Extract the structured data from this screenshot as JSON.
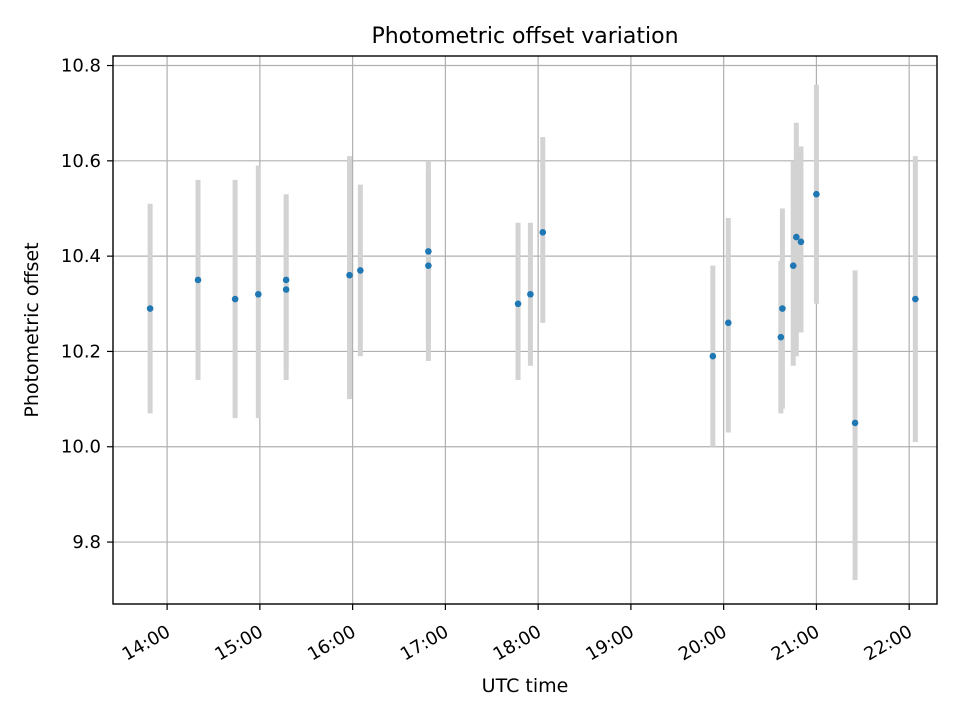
{
  "chart_data": {
    "type": "scatter",
    "title": "Photometric offset variation",
    "xlabel": "UTC time",
    "ylabel": "Photometric offset",
    "x_axis_type": "time",
    "xlim": [
      "13:25",
      "22:18"
    ],
    "ylim": [
      9.67,
      10.82
    ],
    "x_ticks": [
      "14:00",
      "15:00",
      "16:00",
      "17:00",
      "18:00",
      "19:00",
      "20:00",
      "21:00",
      "22:00"
    ],
    "y_ticks": [
      9.8,
      10.0,
      10.2,
      10.4,
      10.6,
      10.8
    ],
    "y_tick_labels": [
      "9.8",
      "10.0",
      "10.2",
      "10.4",
      "10.6",
      "10.8"
    ],
    "grid": true,
    "point_color": "#1f77b4",
    "errorbar_color": "#d3d3d3",
    "points": [
      {
        "x": "13:49",
        "y": 10.29,
        "ylow": 10.07,
        "yhigh": 10.51
      },
      {
        "x": "14:20",
        "y": 10.35,
        "ylow": 10.14,
        "yhigh": 10.56
      },
      {
        "x": "14:44",
        "y": 10.31,
        "ylow": 10.06,
        "yhigh": 10.56
      },
      {
        "x": "14:59",
        "y": 10.32,
        "ylow": 10.06,
        "yhigh": 10.59
      },
      {
        "x": "15:17",
        "y": 10.33,
        "ylow": 10.14,
        "yhigh": 10.52
      },
      {
        "x": "15:17",
        "y": 10.35,
        "ylow": 10.16,
        "yhigh": 10.53
      },
      {
        "x": "15:58",
        "y": 10.36,
        "ylow": 10.1,
        "yhigh": 10.61
      },
      {
        "x": "16:05",
        "y": 10.37,
        "ylow": 10.19,
        "yhigh": 10.55
      },
      {
        "x": "16:49",
        "y": 10.41,
        "ylow": 10.22,
        "yhigh": 10.6
      },
      {
        "x": "16:49",
        "y": 10.38,
        "ylow": 10.18,
        "yhigh": 10.58
      },
      {
        "x": "17:47",
        "y": 10.3,
        "ylow": 10.14,
        "yhigh": 10.47
      },
      {
        "x": "17:55",
        "y": 10.32,
        "ylow": 10.17,
        "yhigh": 10.47
      },
      {
        "x": "18:03",
        "y": 10.45,
        "ylow": 10.26,
        "yhigh": 10.65
      },
      {
        "x": "19:53",
        "y": 10.19,
        "ylow": 10.0,
        "yhigh": 10.38
      },
      {
        "x": "20:03",
        "y": 10.26,
        "ylow": 10.03,
        "yhigh": 10.48
      },
      {
        "x": "20:37",
        "y": 10.23,
        "ylow": 10.07,
        "yhigh": 10.39
      },
      {
        "x": "20:38",
        "y": 10.29,
        "ylow": 10.08,
        "yhigh": 10.5
      },
      {
        "x": "20:45",
        "y": 10.38,
        "ylow": 10.17,
        "yhigh": 10.6
      },
      {
        "x": "20:47",
        "y": 10.44,
        "ylow": 10.19,
        "yhigh": 10.68
      },
      {
        "x": "20:50",
        "y": 10.43,
        "ylow": 10.24,
        "yhigh": 10.63
      },
      {
        "x": "21:00",
        "y": 10.53,
        "ylow": 10.3,
        "yhigh": 10.76
      },
      {
        "x": "21:25",
        "y": 10.05,
        "ylow": 9.72,
        "yhigh": 10.37
      },
      {
        "x": "22:04",
        "y": 10.31,
        "ylow": 10.01,
        "yhigh": 10.61
      }
    ]
  }
}
